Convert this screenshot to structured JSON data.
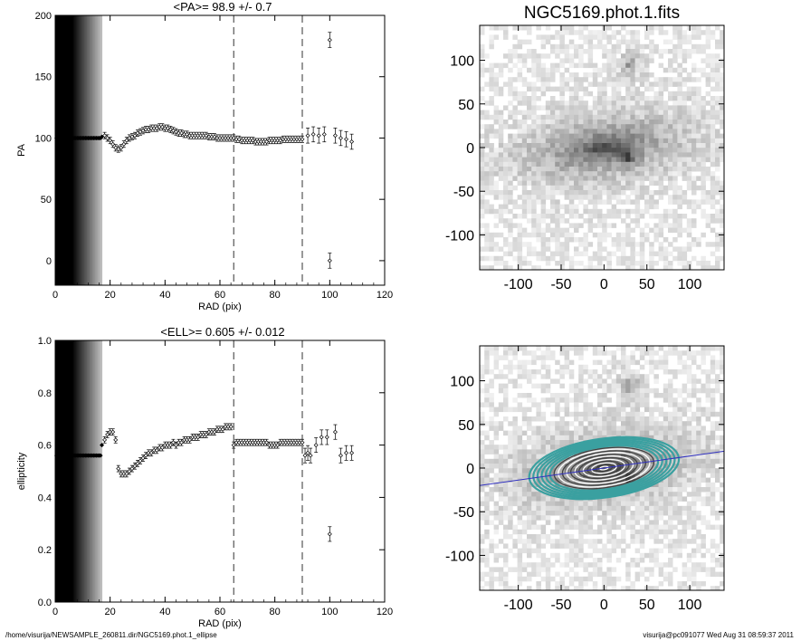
{
  "chart_data": [
    {
      "type": "scatter",
      "title": "<PA>=  98.9 +/-   0.7",
      "xlabel": "RAD (pix)",
      "ylabel": "PA",
      "xlim": [
        0,
        120
      ],
      "ylim": [
        -20,
        200
      ],
      "xticks": [
        "0",
        "20",
        "40",
        "60",
        "80",
        "100",
        "120"
      ],
      "yticks": [
        "0",
        "50",
        "100",
        "150",
        "200"
      ],
      "vlines": [
        65,
        90
      ],
      "shaded_region": [
        0,
        17
      ],
      "series": [
        {
          "points": [
            [
              0.5,
              100
            ],
            [
              1,
              100
            ],
            [
              1.5,
              100
            ],
            [
              2,
              100
            ],
            [
              2.5,
              100
            ],
            [
              3,
              100
            ],
            [
              3.5,
              100
            ],
            [
              4,
              100
            ],
            [
              4.5,
              100
            ],
            [
              5,
              100
            ],
            [
              5.5,
              100
            ],
            [
              6,
              100
            ],
            [
              6.5,
              100
            ],
            [
              7,
              100
            ],
            [
              7.5,
              100
            ],
            [
              8,
              100
            ],
            [
              8.5,
              100
            ],
            [
              9,
              100
            ],
            [
              9.5,
              100
            ],
            [
              10,
              100
            ],
            [
              10.5,
              100
            ],
            [
              11,
              100
            ],
            [
              11.5,
              100
            ],
            [
              12,
              100
            ],
            [
              12.5,
              100
            ],
            [
              13,
              100
            ],
            [
              13.5,
              100
            ],
            [
              14,
              100
            ],
            [
              14.5,
              100
            ],
            [
              15,
              100
            ],
            [
              15.5,
              100
            ],
            [
              16,
              100
            ],
            [
              16.5,
              100
            ],
            [
              17,
              101
            ],
            [
              18,
              102
            ],
            [
              19,
              100
            ],
            [
              20,
              98
            ],
            [
              21,
              95
            ],
            [
              22,
              92
            ],
            [
              23,
              91
            ],
            [
              24,
              92
            ],
            [
              25,
              95
            ],
            [
              26,
              98
            ],
            [
              27,
              100
            ],
            [
              28,
              101
            ],
            [
              29,
              102
            ],
            [
              30,
              104
            ],
            [
              31,
              105
            ],
            [
              32,
              106
            ],
            [
              33,
              107
            ],
            [
              34,
              107
            ],
            [
              35,
              108
            ],
            [
              36,
              108
            ],
            [
              37,
              108
            ],
            [
              38,
              109
            ],
            [
              39,
              109
            ],
            [
              40,
              108
            ],
            [
              41,
              108
            ],
            [
              42,
              107
            ],
            [
              43,
              106
            ],
            [
              44,
              105
            ],
            [
              45,
              104
            ],
            [
              46,
              104
            ],
            [
              47,
              103
            ],
            [
              48,
              103
            ],
            [
              49,
              102
            ],
            [
              50,
              102
            ],
            [
              51,
              102
            ],
            [
              52,
              102
            ],
            [
              53,
              102
            ],
            [
              54,
              102
            ],
            [
              55,
              102
            ],
            [
              56,
              101
            ],
            [
              57,
              101
            ],
            [
              58,
              101
            ],
            [
              59,
              100
            ],
            [
              60,
              100
            ],
            [
              61,
              100
            ],
            [
              62,
              100
            ],
            [
              63,
              100
            ],
            [
              64,
              100
            ],
            [
              65,
              100
            ],
            [
              66,
              99
            ],
            [
              67,
              99
            ],
            [
              68,
              98
            ],
            [
              69,
              98
            ],
            [
              70,
              98
            ],
            [
              71,
              98
            ],
            [
              72,
              98
            ],
            [
              73,
              97
            ],
            [
              74,
              97
            ],
            [
              75,
              97
            ],
            [
              76,
              97
            ],
            [
              77,
              97
            ],
            [
              78,
              98
            ],
            [
              79,
              98
            ],
            [
              80,
              98
            ],
            [
              81,
              98
            ],
            [
              82,
              98
            ],
            [
              83,
              99
            ],
            [
              84,
              99
            ],
            [
              85,
              99
            ],
            [
              86,
              99
            ],
            [
              87,
              99
            ],
            [
              88,
              99
            ],
            [
              89,
              99
            ],
            [
              90,
              99
            ],
            [
              92,
              102
            ],
            [
              94,
              103
            ],
            [
              96,
              102
            ],
            [
              98,
              103
            ],
            [
              100,
              180
            ],
            [
              100,
              0
            ],
            [
              102,
              102
            ],
            [
              104,
              100
            ],
            [
              106,
              99
            ],
            [
              108,
              97
            ]
          ]
        }
      ]
    },
    {
      "type": "scatter",
      "title": "<ELL>= 0.605 +/-  0.012",
      "xlabel": "RAD (pix)",
      "ylabel": "ellipticity",
      "xlim": [
        0,
        120
      ],
      "ylim": [
        0.0,
        1.0
      ],
      "xticks": [
        "0",
        "20",
        "40",
        "60",
        "80",
        "100",
        "120"
      ],
      "yticks": [
        "0.0",
        "0.2",
        "0.4",
        "0.6",
        "0.8",
        "1.0"
      ],
      "vlines": [
        65,
        90
      ],
      "shaded_region": [
        0,
        17
      ],
      "series": [
        {
          "points": [
            [
              0.5,
              0.56
            ],
            [
              1,
              0.56
            ],
            [
              1.5,
              0.56
            ],
            [
              2,
              0.56
            ],
            [
              2.5,
              0.56
            ],
            [
              3,
              0.56
            ],
            [
              3.5,
              0.56
            ],
            [
              4,
              0.56
            ],
            [
              4.5,
              0.56
            ],
            [
              5,
              0.56
            ],
            [
              5.5,
              0.56
            ],
            [
              6,
              0.56
            ],
            [
              6.5,
              0.56
            ],
            [
              7,
              0.56
            ],
            [
              7.5,
              0.56
            ],
            [
              8,
              0.56
            ],
            [
              8.5,
              0.56
            ],
            [
              9,
              0.56
            ],
            [
              9.5,
              0.56
            ],
            [
              10,
              0.56
            ],
            [
              10.5,
              0.56
            ],
            [
              11,
              0.56
            ],
            [
              11.5,
              0.56
            ],
            [
              12,
              0.56
            ],
            [
              12.5,
              0.56
            ],
            [
              13,
              0.56
            ],
            [
              13.5,
              0.56
            ],
            [
              14,
              0.56
            ],
            [
              14.5,
              0.56
            ],
            [
              15,
              0.56
            ],
            [
              15.5,
              0.56
            ],
            [
              16,
              0.56
            ],
            [
              16.5,
              0.56
            ],
            [
              17,
              0.6
            ],
            [
              18,
              0.62
            ],
            [
              19,
              0.64
            ],
            [
              20,
              0.65
            ],
            [
              21,
              0.65
            ],
            [
              22,
              0.62
            ],
            [
              23,
              0.51
            ],
            [
              24,
              0.49
            ],
            [
              25,
              0.49
            ],
            [
              26,
              0.49
            ],
            [
              27,
              0.5
            ],
            [
              28,
              0.51
            ],
            [
              29,
              0.52
            ],
            [
              30,
              0.53
            ],
            [
              31,
              0.54
            ],
            [
              32,
              0.55
            ],
            [
              33,
              0.56
            ],
            [
              34,
              0.57
            ],
            [
              35,
              0.57
            ],
            [
              36,
              0.58
            ],
            [
              37,
              0.58
            ],
            [
              38,
              0.59
            ],
            [
              39,
              0.59
            ],
            [
              40,
              0.6
            ],
            [
              41,
              0.6
            ],
            [
              42,
              0.6
            ],
            [
              43,
              0.61
            ],
            [
              44,
              0.6
            ],
            [
              45,
              0.61
            ],
            [
              46,
              0.61
            ],
            [
              47,
              0.62
            ],
            [
              48,
              0.62
            ],
            [
              49,
              0.62
            ],
            [
              50,
              0.63
            ],
            [
              51,
              0.63
            ],
            [
              52,
              0.63
            ],
            [
              53,
              0.64
            ],
            [
              54,
              0.64
            ],
            [
              55,
              0.64
            ],
            [
              56,
              0.65
            ],
            [
              57,
              0.65
            ],
            [
              58,
              0.65
            ],
            [
              59,
              0.66
            ],
            [
              60,
              0.66
            ],
            [
              61,
              0.66
            ],
            [
              62,
              0.67
            ],
            [
              63,
              0.67
            ],
            [
              64,
              0.67
            ],
            [
              65,
              0.6
            ],
            [
              66,
              0.61
            ],
            [
              67,
              0.61
            ],
            [
              68,
              0.61
            ],
            [
              69,
              0.61
            ],
            [
              70,
              0.61
            ],
            [
              71,
              0.61
            ],
            [
              72,
              0.61
            ],
            [
              73,
              0.61
            ],
            [
              74,
              0.61
            ],
            [
              75,
              0.61
            ],
            [
              76,
              0.61
            ],
            [
              77,
              0.61
            ],
            [
              78,
              0.6
            ],
            [
              79,
              0.6
            ],
            [
              80,
              0.6
            ],
            [
              81,
              0.6
            ],
            [
              82,
              0.61
            ],
            [
              83,
              0.61
            ],
            [
              84,
              0.61
            ],
            [
              85,
              0.61
            ],
            [
              86,
              0.61
            ],
            [
              87,
              0.61
            ],
            [
              88,
              0.61
            ],
            [
              89,
              0.61
            ],
            [
              90,
              0.61
            ],
            [
              91,
              0.56
            ],
            [
              92,
              0.57
            ],
            [
              93,
              0.56
            ],
            [
              95,
              0.6
            ],
            [
              97,
              0.63
            ],
            [
              99,
              0.63
            ],
            [
              100,
              0.26
            ],
            [
              102,
              0.65
            ],
            [
              104,
              0.56
            ],
            [
              106,
              0.57
            ],
            [
              108,
              0.57
            ]
          ]
        }
      ]
    },
    {
      "type": "heatmap",
      "title": "NGC5169.phot.1.fits",
      "xlim": [
        -145,
        140
      ],
      "ylim": [
        -140,
        140
      ],
      "xticks": [
        "-100",
        "-50",
        "0",
        "50",
        "100"
      ],
      "yticks": [
        "100",
        "50",
        "0",
        "-50",
        "-100"
      ],
      "galaxy": {
        "center": [
          0,
          0
        ],
        "major_axis": 80,
        "minor_axis": 30,
        "pa_deg": 8
      }
    },
    {
      "type": "heatmap",
      "title": "",
      "xlim": [
        -145,
        140
      ],
      "ylim": [
        -140,
        140
      ],
      "xticks": [
        "-100",
        "-50",
        "0",
        "50",
        "100"
      ],
      "yticks": [
        "100",
        "50",
        "0",
        "-50",
        "-100"
      ],
      "overlay_line_color": "#3030c0",
      "contour_colors": [
        "#3aa0a0",
        "#ffffff",
        "#404040"
      ],
      "galaxy": {
        "center": [
          0,
          0
        ],
        "major_axis": 80,
        "minor_axis": 30,
        "pa_deg": 8
      }
    }
  ],
  "footer": {
    "left": "/home/visurija/NEWSAMPLE_260811.dir/NGC5169.phot.1_ellipse",
    "right": "visurija@pc091077  Wed Aug 31 08:59:37 2011"
  }
}
